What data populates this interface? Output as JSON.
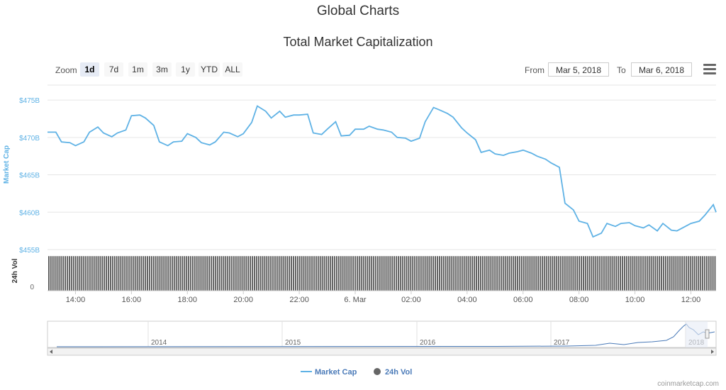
{
  "header": {
    "page_title": "Global Charts",
    "chart_title": "Total Market Capitalization"
  },
  "toolbar": {
    "zoom_label": "Zoom",
    "zoom_options": [
      "1d",
      "7d",
      "1m",
      "3m",
      "1y",
      "YTD",
      "ALL"
    ],
    "active_zoom": "1d",
    "from_label": "From",
    "from_value": "Mar 5, 2018",
    "to_label": "To",
    "to_value": "Mar 6, 2018",
    "menu_icon": "hamburger-menu-icon"
  },
  "colors": {
    "market_cap_line": "#5fb2e5",
    "volume_bars": "#555555",
    "grid": "#e6e6e6",
    "axis_label": "#5fb2e5",
    "navigator_line": "#4a7ab8"
  },
  "chart_data": {
    "type": "line",
    "title": "Total Market Capitalization",
    "y_axis": {
      "label": "Market Cap",
      "ticks": [
        "$475B",
        "$470B",
        "$465B",
        "$460B",
        "$455B"
      ],
      "range": [
        455,
        477
      ]
    },
    "volume_axis": {
      "label": "24h Vol",
      "ticks": [
        "0"
      ]
    },
    "x_axis": {
      "ticks": [
        "14:00",
        "16:00",
        "18:00",
        "20:00",
        "22:00",
        "6. Mar",
        "02:00",
        "04:00",
        "06:00",
        "08:00",
        "10:00",
        "12:00"
      ],
      "range_hours": [
        13.0,
        36.9
      ]
    },
    "series": [
      {
        "name": "Market Cap",
        "unit": "billion USD",
        "x_hours": [
          13.0,
          13.3,
          13.5,
          13.8,
          14.0,
          14.3,
          14.5,
          14.8,
          15.0,
          15.3,
          15.5,
          15.8,
          16.0,
          16.3,
          16.5,
          16.8,
          17.0,
          17.3,
          17.5,
          17.8,
          18.0,
          18.3,
          18.5,
          18.8,
          19.0,
          19.3,
          19.5,
          19.8,
          20.0,
          20.3,
          20.5,
          20.8,
          21.0,
          21.3,
          21.5,
          21.8,
          22.0,
          22.3,
          22.5,
          22.8,
          23.0,
          23.3,
          23.5,
          23.8,
          24.0,
          24.3,
          24.5,
          24.8,
          25.0,
          25.3,
          25.5,
          25.8,
          26.0,
          26.3,
          26.5,
          26.8,
          27.0,
          27.3,
          27.5,
          27.8,
          28.0,
          28.3,
          28.5,
          28.8,
          29.0,
          29.3,
          29.5,
          29.8,
          30.0,
          30.3,
          30.5,
          30.8,
          31.0,
          31.3,
          31.5,
          31.8,
          32.0,
          32.3,
          32.5,
          32.8,
          33.0,
          33.3,
          33.5,
          33.8,
          34.0,
          34.3,
          34.5,
          34.8,
          35.0,
          35.3,
          35.5,
          35.8,
          36.0,
          36.3,
          36.5,
          36.8,
          36.9
        ],
        "values": [
          470.7,
          470.7,
          469.4,
          469.3,
          468.9,
          469.4,
          470.7,
          471.4,
          470.6,
          470.1,
          470.6,
          471.0,
          472.9,
          473.0,
          472.6,
          471.6,
          469.4,
          468.9,
          469.4,
          469.5,
          470.5,
          470.0,
          469.3,
          469.0,
          469.4,
          470.7,
          470.6,
          470.1,
          470.5,
          472.0,
          474.2,
          473.5,
          472.6,
          473.5,
          472.7,
          473.0,
          473.0,
          473.1,
          470.6,
          470.4,
          471.1,
          472.1,
          470.2,
          470.3,
          471.1,
          471.1,
          471.5,
          471.1,
          471.0,
          470.7,
          470.0,
          469.9,
          469.5,
          469.9,
          472.1,
          474.0,
          473.7,
          473.2,
          472.7,
          471.3,
          470.6,
          469.7,
          468.0,
          468.3,
          467.8,
          467.6,
          467.9,
          468.1,
          468.3,
          467.9,
          467.5,
          467.1,
          466.6,
          466.0,
          461.2,
          460.3,
          458.8,
          458.5,
          456.7,
          457.2,
          458.5,
          458.1,
          458.5,
          458.6,
          458.2,
          457.9,
          458.3,
          457.5,
          458.5,
          457.6,
          457.5,
          458.1,
          458.5,
          458.8,
          459.6,
          461.0,
          460.0
        ]
      },
      {
        "name": "24h Vol",
        "unit": "relative",
        "note": "dense daily volume bars, near-constant height",
        "level": 0.92
      }
    ],
    "navigator": {
      "ticks": [
        "2014",
        "2015",
        "2016",
        "2017",
        "2018"
      ]
    },
    "legend": {
      "placement": "bottom-center",
      "items": [
        "Market Cap",
        "24h Vol"
      ]
    },
    "grid": true
  },
  "footer": {
    "credit": "coinmarketcap.com"
  }
}
